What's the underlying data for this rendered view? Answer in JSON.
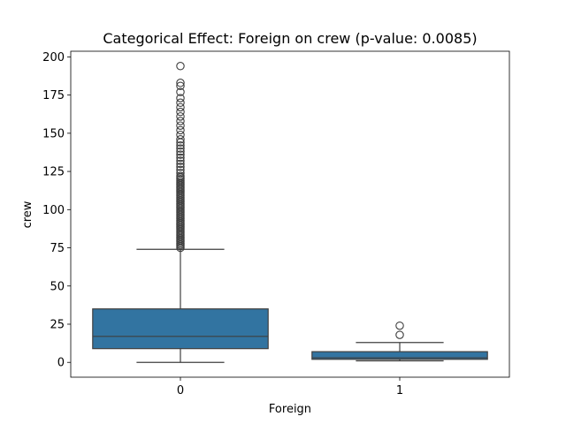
{
  "chart_data": {
    "type": "box",
    "title": "Categorical Effect: Foreign on crew (p-value: 0.0085)",
    "xlabel": "Foreign",
    "ylabel": "crew",
    "categories": [
      "0",
      "1"
    ],
    "ylim": [
      -9.7,
      203.7
    ],
    "yticks": [
      0,
      25,
      50,
      75,
      100,
      125,
      150,
      175,
      200
    ],
    "box_color": "#3274a1",
    "line_color": "#3f3f3f",
    "boxes": [
      {
        "category": "0",
        "whisker_low": 0,
        "q1": 9,
        "median": 17,
        "q3": 35,
        "whisker_high": 74,
        "outliers": [
          75,
          76,
          77,
          78,
          79,
          80,
          81,
          82,
          83,
          84,
          85,
          86,
          87,
          88,
          89,
          90,
          91,
          92,
          93,
          94,
          95,
          96,
          97,
          98,
          99,
          100,
          101,
          102,
          103,
          104,
          105,
          106,
          107,
          108,
          109,
          110,
          111,
          112,
          113,
          114,
          115,
          116,
          117,
          118,
          119,
          120,
          121,
          122,
          124,
          126,
          128,
          130,
          132,
          134,
          136,
          138,
          140,
          142,
          144,
          146,
          149,
          152,
          155,
          158,
          161,
          164,
          167,
          170,
          173,
          177,
          181,
          183,
          194
        ]
      },
      {
        "category": "1",
        "whisker_low": 1,
        "q1": 2,
        "median": 3,
        "q3": 7,
        "whisker_high": 13,
        "outliers": [
          18,
          24
        ]
      }
    ]
  }
}
